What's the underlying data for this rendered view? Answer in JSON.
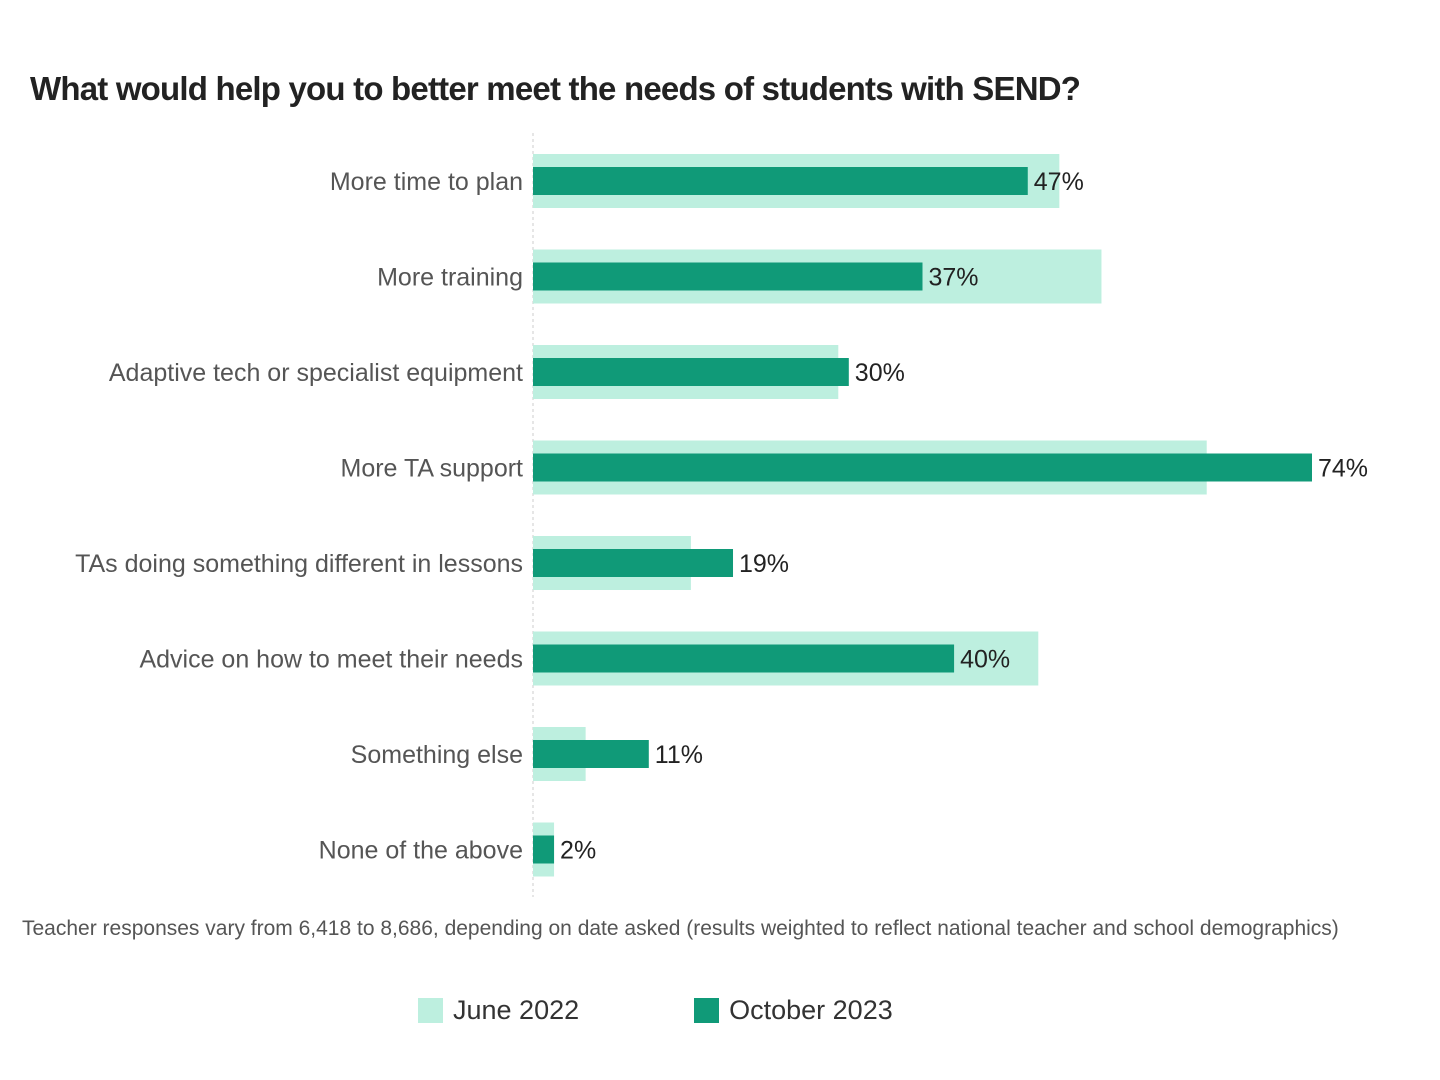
{
  "chart_data": {
    "type": "bar",
    "orientation": "horizontal",
    "title": "What would help you to better meet the needs of students with SEND?",
    "categories": [
      "More time to plan",
      "More training",
      "Adaptive tech or specialist equipment",
      "More TA support",
      "TAs doing something different in lessons",
      "Advice on how to meet their needs",
      "Something else",
      "None of the above"
    ],
    "series": [
      {
        "name": "June 2022",
        "color": "#BDEFDF",
        "values": [
          50,
          54,
          29,
          64,
          15,
          48,
          5,
          2
        ]
      },
      {
        "name": "October 2023",
        "color": "#109A78",
        "values": [
          47,
          37,
          30,
          74,
          19,
          40,
          11,
          2
        ]
      }
    ],
    "data_labels": [
      "47%",
      "37%",
      "30%",
      "74%",
      "19%",
      "40%",
      "11%",
      "2%"
    ],
    "xlim": [
      0,
      100
    ],
    "xlabel": "",
    "ylabel": "",
    "grid": false,
    "legend_position": "bottom"
  },
  "note": "Teacher responses vary from 6,418 to 8,686, depending on date asked (results weighted to reflect national teacher and school demographics)"
}
